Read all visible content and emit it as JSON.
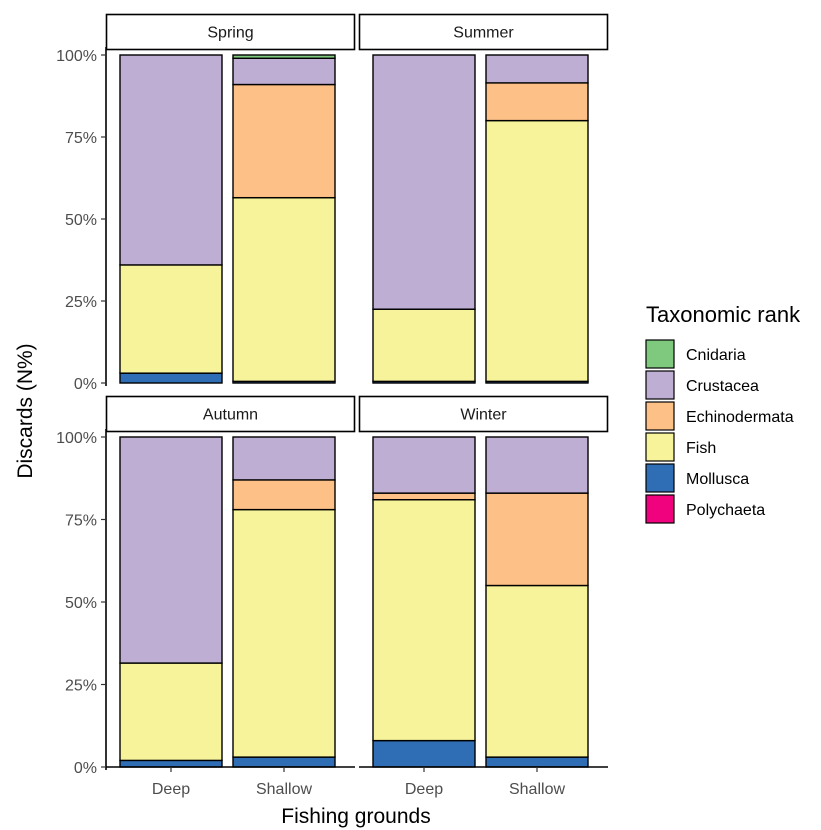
{
  "chart_data": {
    "type": "bar",
    "stacked": true,
    "normalized": true,
    "xlabel": "Fishing grounds",
    "ylabel": "Discards (N%)",
    "ylim": [
      0,
      100
    ],
    "yticks": [
      "0%",
      "25%",
      "50%",
      "75%",
      "100%"
    ],
    "categories": [
      "Deep",
      "Shallow"
    ],
    "legend": {
      "title": "Taxonomic rank",
      "placement": "right",
      "items": [
        {
          "name": "Cnidaria",
          "color": "#7fc97f"
        },
        {
          "name": "Crustacea",
          "color": "#beaed4"
        },
        {
          "name": "Echinodermata",
          "color": "#fdc086"
        },
        {
          "name": "Fish",
          "color": "#f6f39a"
        },
        {
          "name": "Mollusca",
          "color": "#2f6db5"
        },
        {
          "name": "Polychaeta",
          "color": "#f0027f"
        }
      ]
    },
    "stack_order_bottom_to_top": [
      "Polychaeta",
      "Mollusca",
      "Fish",
      "Echinodermata",
      "Crustacea",
      "Cnidaria"
    ],
    "facets": [
      {
        "label": "Spring",
        "bars": {
          "Deep": {
            "Polychaeta": 0,
            "Mollusca": 3,
            "Fish": 33,
            "Echinodermata": 0,
            "Crustacea": 64,
            "Cnidaria": 0
          },
          "Shallow": {
            "Polychaeta": 0,
            "Mollusca": 0.5,
            "Fish": 56,
            "Echinodermata": 34.5,
            "Crustacea": 8,
            "Cnidaria": 1
          }
        }
      },
      {
        "label": "Summer",
        "bars": {
          "Deep": {
            "Polychaeta": 0,
            "Mollusca": 0.5,
            "Fish": 22,
            "Echinodermata": 0,
            "Crustacea": 77.5,
            "Cnidaria": 0
          },
          "Shallow": {
            "Polychaeta": 0,
            "Mollusca": 0.5,
            "Fish": 79.5,
            "Echinodermata": 11.5,
            "Crustacea": 8.5,
            "Cnidaria": 0
          }
        }
      },
      {
        "label": "Autumn",
        "bars": {
          "Deep": {
            "Polychaeta": 0,
            "Mollusca": 2,
            "Fish": 29.5,
            "Echinodermata": 0,
            "Crustacea": 68.5,
            "Cnidaria": 0
          },
          "Shallow": {
            "Polychaeta": 0,
            "Mollusca": 3,
            "Fish": 75,
            "Echinodermata": 9,
            "Crustacea": 13,
            "Cnidaria": 0
          }
        }
      },
      {
        "label": "Winter",
        "bars": {
          "Deep": {
            "Polychaeta": 0,
            "Mollusca": 8,
            "Fish": 73,
            "Echinodermata": 2,
            "Crustacea": 17,
            "Cnidaria": 0
          },
          "Shallow": {
            "Polychaeta": 0,
            "Mollusca": 3,
            "Fish": 52,
            "Echinodermata": 28,
            "Crustacea": 17,
            "Cnidaria": 0
          }
        }
      }
    ]
  }
}
